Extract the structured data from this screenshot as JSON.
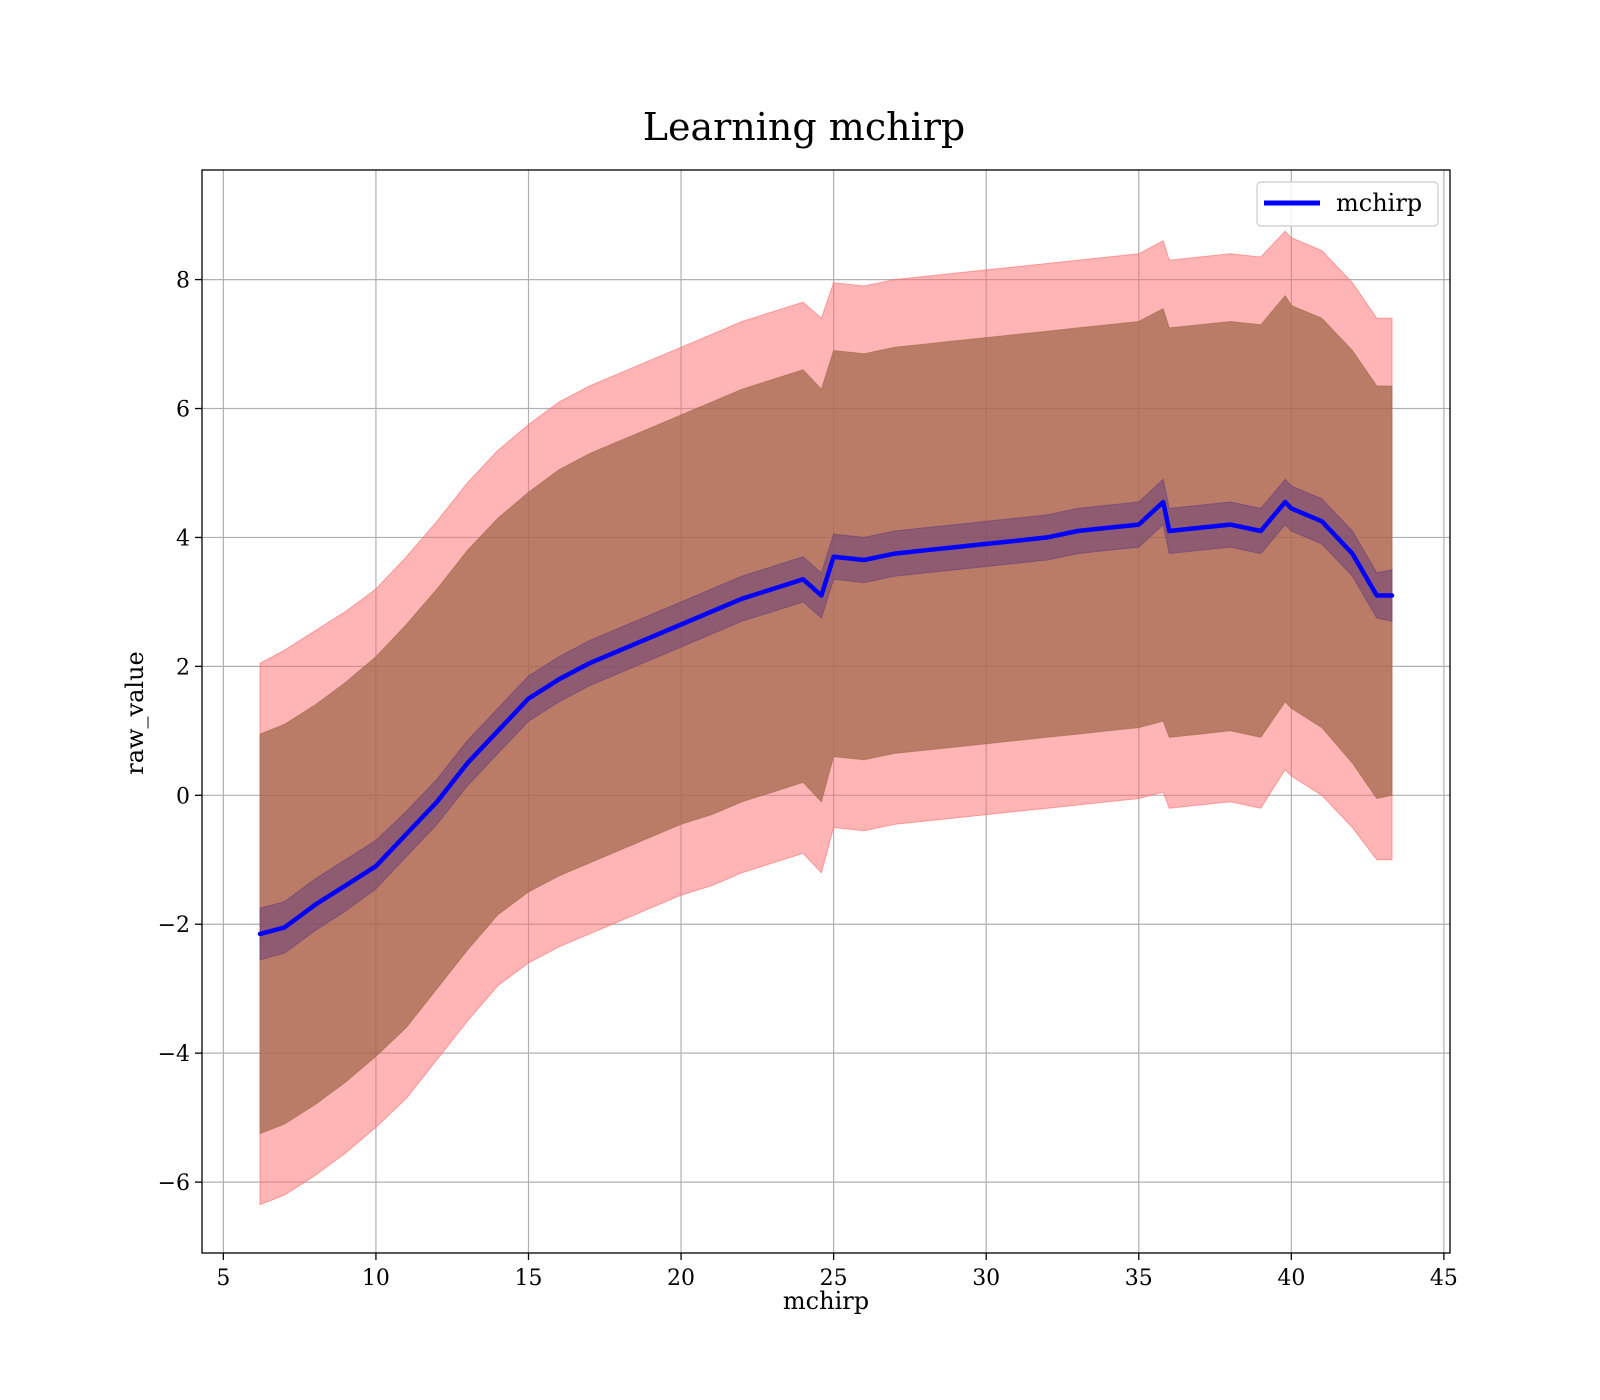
{
  "chart_data": {
    "type": "line",
    "title": "Learning mchirp",
    "xlabel": "mchirp",
    "ylabel": "raw_value",
    "xlim": [
      4.3,
      45.2
    ],
    "ylim": [
      -7.1,
      9.7
    ],
    "xticks": [
      5,
      10,
      15,
      20,
      25,
      30,
      35,
      40,
      45
    ],
    "yticks": [
      -6,
      -4,
      -2,
      0,
      2,
      4,
      6,
      8
    ],
    "xtick_labels": [
      "5",
      "10",
      "15",
      "20",
      "25",
      "30",
      "35",
      "40",
      "45"
    ],
    "ytick_labels": [
      "−6",
      "−4",
      "−2",
      "0",
      "2",
      "4",
      "6",
      "8"
    ],
    "grid": true,
    "legend_position": "top-right",
    "series": [
      {
        "name": "mchirp",
        "color": "#0000ff",
        "x": [
          6.2,
          7.0,
          8.0,
          9.0,
          10.0,
          11.0,
          12.0,
          13.0,
          14.0,
          15.0,
          16.0,
          17.0,
          18.0,
          19.0,
          20.0,
          21.0,
          22.0,
          23.0,
          24.0,
          24.6,
          25.0,
          26.0,
          27.0,
          28.0,
          29.0,
          30.0,
          31.0,
          32.0,
          33.0,
          34.0,
          35.0,
          35.8,
          36.0,
          37.0,
          38.0,
          39.0,
          39.8,
          40.0,
          41.0,
          42.0,
          42.8,
          43.3
        ],
        "y": [
          -2.15,
          -2.05,
          -1.7,
          -1.4,
          -1.1,
          -0.6,
          -0.1,
          0.5,
          1.0,
          1.5,
          1.8,
          2.05,
          2.25,
          2.45,
          2.65,
          2.85,
          3.05,
          3.2,
          3.35,
          3.1,
          3.7,
          3.65,
          3.75,
          3.8,
          3.85,
          3.9,
          3.95,
          4.0,
          4.1,
          4.15,
          4.2,
          4.55,
          4.1,
          4.15,
          4.2,
          4.1,
          4.55,
          4.45,
          4.25,
          3.75,
          3.1,
          3.1
        ]
      }
    ],
    "bands": [
      {
        "fill_color": "#ff6b6b",
        "x": [
          6.2,
          7.0,
          8.0,
          9.0,
          10.0,
          11.0,
          12.0,
          13.0,
          14.0,
          15.0,
          16.0,
          17.0,
          18.0,
          19.0,
          20.0,
          21.0,
          22.0,
          23.0,
          24.0,
          24.6,
          25.0,
          26.0,
          27.0,
          28.0,
          29.0,
          30.0,
          31.0,
          32.0,
          33.0,
          34.0,
          35.0,
          35.8,
          36.0,
          37.0,
          38.0,
          39.0,
          39.8,
          40.0,
          41.0,
          42.0,
          42.8,
          43.3
        ],
        "lower": [
          -6.35,
          -6.2,
          -5.9,
          -5.55,
          -5.15,
          -4.7,
          -4.1,
          -3.5,
          -2.95,
          -2.6,
          -2.35,
          -2.15,
          -1.95,
          -1.75,
          -1.55,
          -1.4,
          -1.2,
          -1.05,
          -0.9,
          -1.2,
          -0.5,
          -0.55,
          -0.45,
          -0.4,
          -0.35,
          -0.3,
          -0.25,
          -0.2,
          -0.15,
          -0.1,
          -0.05,
          0.05,
          -0.2,
          -0.15,
          -0.1,
          -0.2,
          0.4,
          0.3,
          0.0,
          -0.5,
          -1.0,
          -1.0
        ],
        "upper": [
          2.05,
          2.25,
          2.55,
          2.85,
          3.2,
          3.7,
          4.25,
          4.85,
          5.35,
          5.75,
          6.1,
          6.35,
          6.55,
          6.75,
          6.95,
          7.15,
          7.35,
          7.5,
          7.65,
          7.4,
          7.95,
          7.9,
          8.0,
          8.05,
          8.1,
          8.15,
          8.2,
          8.25,
          8.3,
          8.35,
          8.4,
          8.6,
          8.3,
          8.35,
          8.4,
          8.35,
          8.75,
          8.65,
          8.45,
          7.95,
          7.4,
          7.4
        ]
      },
      {
        "fill_color": "#a0674a",
        "x": [
          6.2,
          7.0,
          8.0,
          9.0,
          10.0,
          11.0,
          12.0,
          13.0,
          14.0,
          15.0,
          16.0,
          17.0,
          18.0,
          19.0,
          20.0,
          21.0,
          22.0,
          23.0,
          24.0,
          24.6,
          25.0,
          26.0,
          27.0,
          28.0,
          29.0,
          30.0,
          31.0,
          32.0,
          33.0,
          34.0,
          35.0,
          35.8,
          36.0,
          37.0,
          38.0,
          39.0,
          39.8,
          40.0,
          41.0,
          42.0,
          42.8,
          43.3
        ],
        "lower": [
          -5.25,
          -5.1,
          -4.8,
          -4.45,
          -4.05,
          -3.6,
          -3.0,
          -2.4,
          -1.85,
          -1.5,
          -1.25,
          -1.05,
          -0.85,
          -0.65,
          -0.45,
          -0.3,
          -0.1,
          0.05,
          0.2,
          -0.1,
          0.6,
          0.55,
          0.65,
          0.7,
          0.75,
          0.8,
          0.85,
          0.9,
          0.95,
          1.0,
          1.05,
          1.15,
          0.9,
          0.95,
          1.0,
          0.9,
          1.45,
          1.35,
          1.05,
          0.5,
          -0.05,
          0.0
        ],
        "upper": [
          0.95,
          1.1,
          1.4,
          1.75,
          2.15,
          2.65,
          3.2,
          3.8,
          4.3,
          4.7,
          5.05,
          5.3,
          5.5,
          5.7,
          5.9,
          6.1,
          6.3,
          6.45,
          6.6,
          6.3,
          6.9,
          6.85,
          6.95,
          7.0,
          7.05,
          7.1,
          7.15,
          7.2,
          7.25,
          7.3,
          7.35,
          7.55,
          7.25,
          7.3,
          7.35,
          7.3,
          7.75,
          7.6,
          7.4,
          6.9,
          6.35,
          6.35
        ]
      },
      {
        "fill_color": "#6b3f7a",
        "x": [
          6.2,
          7.0,
          8.0,
          9.0,
          10.0,
          11.0,
          12.0,
          13.0,
          14.0,
          15.0,
          16.0,
          17.0,
          18.0,
          19.0,
          20.0,
          21.0,
          22.0,
          23.0,
          24.0,
          24.6,
          25.0,
          26.0,
          27.0,
          28.0,
          29.0,
          30.0,
          31.0,
          32.0,
          33.0,
          34.0,
          35.0,
          35.8,
          36.0,
          37.0,
          38.0,
          39.0,
          39.8,
          40.0,
          41.0,
          42.0,
          42.8,
          43.3
        ],
        "lower": [
          -2.55,
          -2.45,
          -2.1,
          -1.8,
          -1.45,
          -0.95,
          -0.45,
          0.15,
          0.65,
          1.15,
          1.45,
          1.7,
          1.9,
          2.1,
          2.3,
          2.5,
          2.7,
          2.85,
          3.0,
          2.75,
          3.35,
          3.3,
          3.4,
          3.45,
          3.5,
          3.55,
          3.6,
          3.65,
          3.75,
          3.8,
          3.85,
          4.2,
          3.75,
          3.8,
          3.85,
          3.75,
          4.2,
          4.1,
          3.9,
          3.4,
          2.75,
          2.7
        ],
        "upper": [
          -1.75,
          -1.65,
          -1.3,
          -1.0,
          -0.7,
          -0.25,
          0.25,
          0.85,
          1.35,
          1.85,
          2.15,
          2.4,
          2.6,
          2.8,
          3.0,
          3.2,
          3.4,
          3.55,
          3.7,
          3.45,
          4.05,
          4.0,
          4.1,
          4.15,
          4.2,
          4.25,
          4.3,
          4.35,
          4.45,
          4.5,
          4.55,
          4.9,
          4.45,
          4.5,
          4.55,
          4.45,
          4.9,
          4.8,
          4.6,
          4.1,
          3.45,
          3.5
        ]
      }
    ]
  }
}
